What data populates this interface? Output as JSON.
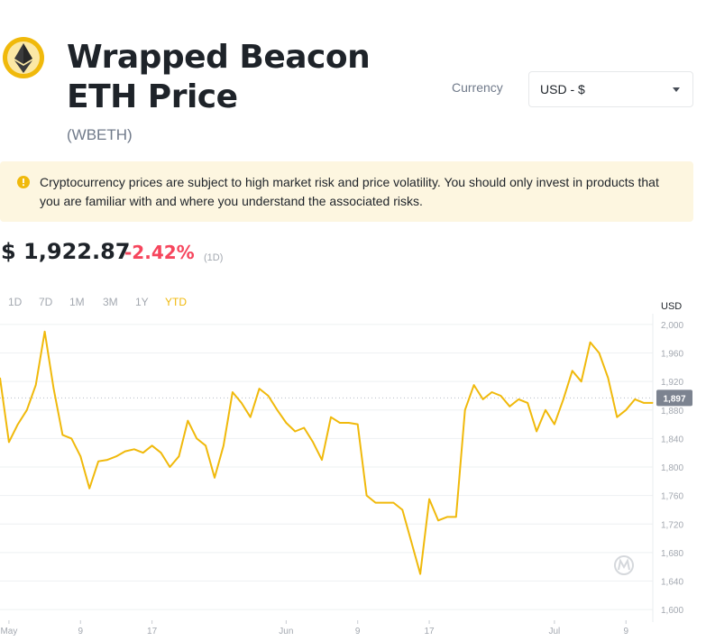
{
  "header": {
    "title_line1": "Wrapped Beacon",
    "title_line2": "ETH Price",
    "symbol": "(WBETH)",
    "logo_icon": "ethereum-logo-icon"
  },
  "currency": {
    "label": "Currency",
    "selected": "USD - $"
  },
  "warning": {
    "icon": "exclamation-circle-icon",
    "text": "Cryptocurrency prices are subject to high market risk and price volatility. You should only invest in products that you are familiar with and where you understand the associated risks."
  },
  "price": {
    "value": "$ 1,922.87",
    "change": "-2.42%",
    "period": "(1D)"
  },
  "ranges": [
    {
      "label": "1D",
      "active": false
    },
    {
      "label": "7D",
      "active": false
    },
    {
      "label": "1M",
      "active": false
    },
    {
      "label": "3M",
      "active": false
    },
    {
      "label": "1Y",
      "active": false
    },
    {
      "label": "YTD",
      "active": true
    }
  ],
  "colors": {
    "line": "#f0b90b",
    "negative": "#f6465d",
    "warning_bg": "#fdf6e0",
    "current_badge": "#7c8390"
  },
  "chart_data": {
    "type": "line",
    "unit_label": "USD",
    "current_value": 1897,
    "current_label": "1,897",
    "ylim": [
      1585,
      2010
    ],
    "y_ticks": [
      2000,
      1960,
      1920,
      1880,
      1840,
      1800,
      1760,
      1720,
      1680,
      1640,
      1600
    ],
    "y_tick_labels": [
      "2,000",
      "1,960",
      "1,920",
      "1,880",
      "1,840",
      "1,800",
      "1,760",
      "1,720",
      "1,680",
      "1,640",
      "1,600"
    ],
    "x_range": [
      "2023-04-30",
      "2023-07-12"
    ],
    "x_ticks": [
      "2023-05-01",
      "2023-05-09",
      "2023-05-17",
      "2023-06-01",
      "2023-06-09",
      "2023-06-17",
      "2023-07-01",
      "2023-07-09"
    ],
    "x_tick_labels": [
      "May",
      "9",
      "17",
      "Jun",
      "9",
      "17",
      "Jul",
      "9"
    ],
    "grid": true,
    "series": [
      {
        "x": [
          "2023-04-30",
          "2023-05-01",
          "2023-05-02",
          "2023-05-03",
          "2023-05-04",
          "2023-05-05",
          "2023-05-06",
          "2023-05-07",
          "2023-05-08",
          "2023-05-09",
          "2023-05-10",
          "2023-05-11",
          "2023-05-12",
          "2023-05-13",
          "2023-05-14",
          "2023-05-15",
          "2023-05-16",
          "2023-05-17",
          "2023-05-18",
          "2023-05-19",
          "2023-05-20",
          "2023-05-21",
          "2023-05-22",
          "2023-05-23",
          "2023-05-24",
          "2023-05-25",
          "2023-05-26",
          "2023-05-27",
          "2023-05-28",
          "2023-05-29",
          "2023-05-30",
          "2023-05-31",
          "2023-06-01",
          "2023-06-02",
          "2023-06-03",
          "2023-06-04",
          "2023-06-05",
          "2023-06-06",
          "2023-06-07",
          "2023-06-08",
          "2023-06-09",
          "2023-06-10",
          "2023-06-11",
          "2023-06-12",
          "2023-06-13",
          "2023-06-14",
          "2023-06-15",
          "2023-06-16",
          "2023-06-17",
          "2023-06-18",
          "2023-06-19",
          "2023-06-20",
          "2023-06-21",
          "2023-06-22",
          "2023-06-23",
          "2023-06-24",
          "2023-06-25",
          "2023-06-26",
          "2023-06-27",
          "2023-06-28",
          "2023-06-29",
          "2023-06-30",
          "2023-07-01",
          "2023-07-02",
          "2023-07-03",
          "2023-07-04",
          "2023-07-05",
          "2023-07-06",
          "2023-07-07",
          "2023-07-08",
          "2023-07-09",
          "2023-07-10",
          "2023-07-11",
          "2023-07-12"
        ],
        "values": [
          1925,
          1835,
          1860,
          1880,
          1915,
          1990,
          1910,
          1845,
          1840,
          1815,
          1770,
          1808,
          1810,
          1815,
          1822,
          1825,
          1820,
          1830,
          1820,
          1800,
          1815,
          1865,
          1840,
          1830,
          1785,
          1830,
          1905,
          1890,
          1870,
          1910,
          1900,
          1880,
          1862,
          1850,
          1855,
          1835,
          1810,
          1870,
          1862,
          1862,
          1860,
          1760,
          1750,
          1750,
          1750,
          1740,
          1695,
          1650,
          1755,
          1725,
          1730,
          1730,
          1880,
          1915,
          1895,
          1905,
          1900,
          1885,
          1895,
          1890,
          1850,
          1880,
          1860,
          1895,
          1935,
          1920,
          1975,
          1960,
          1925,
          1870,
          1880,
          1895,
          1890,
          1890
        ]
      }
    ]
  }
}
